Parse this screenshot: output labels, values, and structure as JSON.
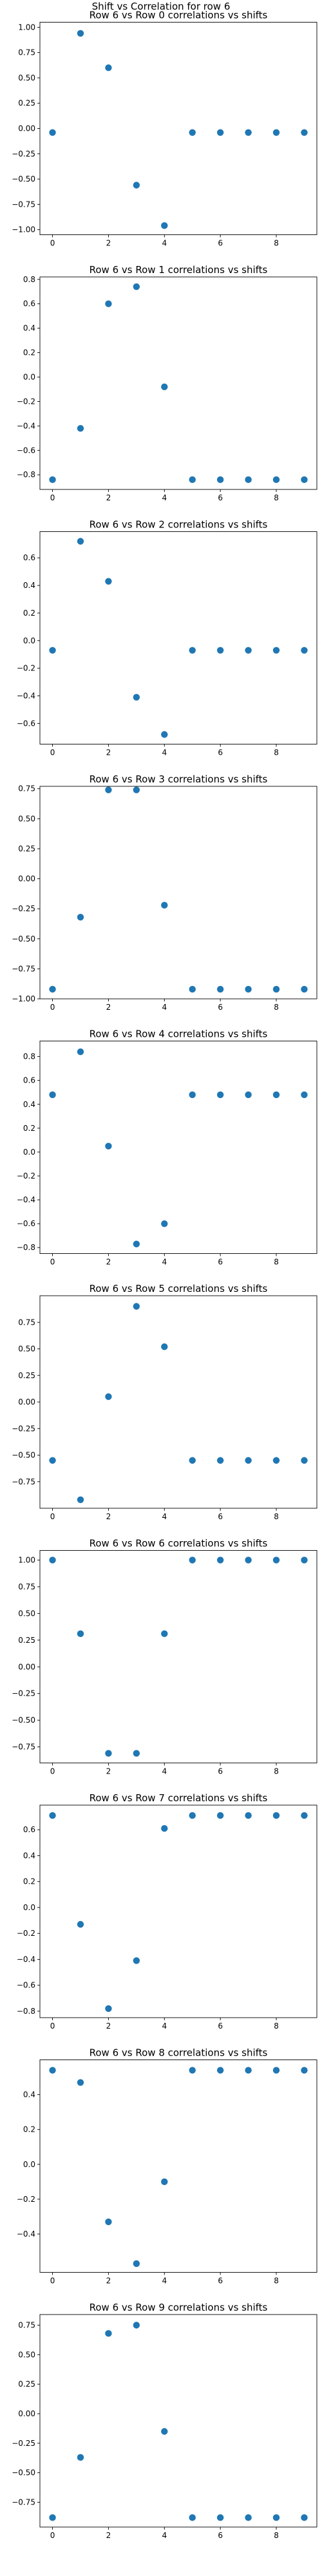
{
  "figure_title": "Shift vs Correlation for row 6",
  "colors": {
    "marker": "#1f77b4",
    "background": "#ffffff",
    "axes": "#000000"
  },
  "chart_data": [
    {
      "type": "scatter",
      "title": "Row 6 vs Row 0 correlations vs shifts",
      "x": [
        0,
        1,
        2,
        3,
        4,
        5,
        6,
        7,
        8,
        9
      ],
      "y": [
        -0.04,
        0.94,
        0.6,
        -0.56,
        -0.96,
        -0.04,
        -0.04,
        -0.04,
        -0.04,
        -0.04
      ],
      "xlim": [
        -0.45,
        9.45
      ],
      "ylim": [
        -1.05,
        1.05
      ],
      "xticks": [
        0,
        2,
        4,
        6,
        8
      ],
      "xtick_labels": [
        "0",
        "2",
        "4",
        "6",
        "8"
      ],
      "yticks": [
        1.0,
        0.75,
        0.5,
        0.25,
        0.0,
        -0.25,
        -0.5,
        -0.75,
        -1.0
      ],
      "ytick_labels": [
        "1.00",
        "0.75",
        "0.50",
        "0.25",
        "0.00",
        "−0.25",
        "−0.50",
        "−0.75",
        "−1.00"
      ],
      "grid": false
    },
    {
      "type": "scatter",
      "title": "Row 6 vs Row 1 correlations vs shifts",
      "x": [
        0,
        1,
        2,
        3,
        4,
        5,
        6,
        7,
        8,
        9
      ],
      "y": [
        -0.84,
        -0.42,
        0.6,
        0.74,
        -0.08,
        -0.84,
        -0.84,
        -0.84,
        -0.84,
        -0.84
      ],
      "xlim": [
        -0.45,
        9.45
      ],
      "ylim": [
        -0.92,
        0.82
      ],
      "xticks": [
        0,
        2,
        4,
        6,
        8
      ],
      "xtick_labels": [
        "0",
        "2",
        "4",
        "6",
        "8"
      ],
      "yticks": [
        0.8,
        0.6,
        0.4,
        0.2,
        0.0,
        -0.2,
        -0.4,
        -0.6,
        -0.8
      ],
      "ytick_labels": [
        "0.8",
        "0.6",
        "0.4",
        "0.2",
        "0.0",
        "−0.2",
        "−0.4",
        "−0.6",
        "−0.8"
      ],
      "grid": false
    },
    {
      "type": "scatter",
      "title": "Row 6 vs Row 2 correlations vs shifts",
      "x": [
        0,
        1,
        2,
        3,
        4,
        5,
        6,
        7,
        8,
        9
      ],
      "y": [
        -0.07,
        0.72,
        0.43,
        -0.41,
        -0.68,
        -0.07,
        -0.07,
        -0.07,
        -0.07,
        -0.07
      ],
      "xlim": [
        -0.45,
        9.45
      ],
      "ylim": [
        -0.75,
        0.79
      ],
      "xticks": [
        0,
        2,
        4,
        6,
        8
      ],
      "xtick_labels": [
        "0",
        "2",
        "4",
        "6",
        "8"
      ],
      "yticks": [
        0.6,
        0.4,
        0.2,
        0.0,
        -0.2,
        -0.4,
        -0.6
      ],
      "ytick_labels": [
        "0.6",
        "0.4",
        "0.2",
        "0.0",
        "−0.2",
        "−0.4",
        "−0.6"
      ],
      "grid": false
    },
    {
      "type": "scatter",
      "title": "Row 6 vs Row 3 correlations vs shifts",
      "x": [
        0,
        1,
        2,
        3,
        4,
        5,
        6,
        7,
        8,
        9
      ],
      "y": [
        -0.92,
        -0.32,
        0.74,
        0.74,
        -0.22,
        -0.92,
        -0.92,
        -0.92,
        -0.92,
        -0.92
      ],
      "xlim": [
        -0.45,
        9.45
      ],
      "ylim": [
        -1.0,
        0.77
      ],
      "xticks": [
        0,
        2,
        4,
        6,
        8
      ],
      "xtick_labels": [
        "0",
        "2",
        "4",
        "6",
        "8"
      ],
      "yticks": [
        0.75,
        0.5,
        0.25,
        0.0,
        -0.25,
        -0.5,
        -0.75,
        -1.0
      ],
      "ytick_labels": [
        "0.75",
        "0.50",
        "0.25",
        "0.00",
        "−0.25",
        "−0.50",
        "−0.75",
        "−1.00"
      ],
      "grid": false
    },
    {
      "type": "scatter",
      "title": "Row 6 vs Row 4 correlations vs shifts",
      "x": [
        0,
        1,
        2,
        3,
        4,
        5,
        6,
        7,
        8,
        9
      ],
      "y": [
        0.48,
        0.84,
        0.05,
        -0.77,
        -0.6,
        0.48,
        0.48,
        0.48,
        0.48,
        0.48
      ],
      "xlim": [
        -0.45,
        9.45
      ],
      "ylim": [
        -0.85,
        0.93
      ],
      "xticks": [
        0,
        2,
        4,
        6,
        8
      ],
      "xtick_labels": [
        "0",
        "2",
        "4",
        "6",
        "8"
      ],
      "yticks": [
        0.8,
        0.6,
        0.4,
        0.2,
        0.0,
        -0.2,
        -0.4,
        -0.6,
        -0.8
      ],
      "ytick_labels": [
        "0.8",
        "0.6",
        "0.4",
        "0.2",
        "0.0",
        "−0.2",
        "−0.4",
        "−0.6",
        "−0.8"
      ],
      "grid": false
    },
    {
      "type": "scatter",
      "title": "Row 6 vs Row 5 correlations vs shifts",
      "x": [
        0,
        1,
        2,
        3,
        4,
        5,
        6,
        7,
        8,
        9
      ],
      "y": [
        -0.55,
        -0.92,
        0.05,
        0.9,
        0.52,
        -0.55,
        -0.55,
        -0.55,
        -0.55,
        -0.55
      ],
      "xlim": [
        -0.45,
        9.45
      ],
      "ylim": [
        -1.0,
        1.0
      ],
      "xticks": [
        0,
        2,
        4,
        6,
        8
      ],
      "xtick_labels": [
        "0",
        "2",
        "4",
        "6",
        "8"
      ],
      "yticks": [
        0.75,
        0.5,
        0.25,
        0.0,
        -0.25,
        -0.5,
        -0.75
      ],
      "ytick_labels": [
        "0.75",
        "0.50",
        "0.25",
        "0.00",
        "−0.25",
        "−0.50",
        "−0.75"
      ],
      "grid": false
    },
    {
      "type": "scatter",
      "title": "Row 6 vs Row 6 correlations vs shifts",
      "x": [
        0,
        1,
        2,
        3,
        4,
        5,
        6,
        7,
        8,
        9
      ],
      "y": [
        1.0,
        0.31,
        -0.81,
        -0.81,
        0.31,
        1.0,
        1.0,
        1.0,
        1.0,
        1.0
      ],
      "xlim": [
        -0.45,
        9.45
      ],
      "ylim": [
        -0.9,
        1.09
      ],
      "xticks": [
        0,
        2,
        4,
        6,
        8
      ],
      "xtick_labels": [
        "0",
        "2",
        "4",
        "6",
        "8"
      ],
      "yticks": [
        1.0,
        0.75,
        0.5,
        0.25,
        0.0,
        -0.25,
        -0.5,
        -0.75
      ],
      "ytick_labels": [
        "1.00",
        "0.75",
        "0.50",
        "0.25",
        "0.00",
        "−0.25",
        "−0.50",
        "−0.75"
      ],
      "grid": false
    },
    {
      "type": "scatter",
      "title": "Row 6 vs Row 7 correlations vs shifts",
      "x": [
        0,
        1,
        2,
        3,
        4,
        5,
        6,
        7,
        8,
        9
      ],
      "y": [
        0.71,
        -0.13,
        -0.78,
        -0.41,
        0.61,
        0.71,
        0.71,
        0.71,
        0.71,
        0.71
      ],
      "xlim": [
        -0.45,
        9.45
      ],
      "ylim": [
        -0.85,
        0.79
      ],
      "xticks": [
        0,
        2,
        4,
        6,
        8
      ],
      "xtick_labels": [
        "0",
        "2",
        "4",
        "6",
        "8"
      ],
      "yticks": [
        0.6,
        0.4,
        0.2,
        0.0,
        -0.2,
        -0.4,
        -0.6,
        -0.8
      ],
      "ytick_labels": [
        "0.6",
        "0.4",
        "0.2",
        "0.0",
        "−0.2",
        "−0.4",
        "−0.6",
        "−0.8"
      ],
      "grid": false
    },
    {
      "type": "scatter",
      "title": "Row 6 vs Row 8 correlations vs shifts",
      "x": [
        0,
        1,
        2,
        3,
        4,
        5,
        6,
        7,
        8,
        9
      ],
      "y": [
        0.54,
        0.47,
        -0.33,
        -0.57,
        -0.1,
        0.54,
        0.54,
        0.54,
        0.54,
        0.54
      ],
      "xlim": [
        -0.45,
        9.45
      ],
      "ylim": [
        -0.62,
        0.6
      ],
      "xticks": [
        0,
        2,
        4,
        6,
        8
      ],
      "xtick_labels": [
        "0",
        "2",
        "4",
        "6",
        "8"
      ],
      "yticks": [
        0.4,
        0.2,
        0.0,
        -0.2,
        -0.4
      ],
      "ytick_labels": [
        "0.4",
        "0.2",
        "0.0",
        "−0.2",
        "−0.4"
      ],
      "grid": false
    },
    {
      "type": "scatter",
      "title": "Row 6 vs Row 9 correlations vs shifts",
      "x": [
        0,
        1,
        2,
        3,
        4,
        5,
        6,
        7,
        8,
        9
      ],
      "y": [
        -0.88,
        -0.37,
        0.68,
        0.75,
        -0.15,
        -0.88,
        -0.88,
        -0.88,
        -0.88,
        -0.88
      ],
      "xlim": [
        -0.45,
        9.45
      ],
      "ylim": [
        -0.96,
        0.84
      ],
      "xticks": [
        0,
        2,
        4,
        6,
        8
      ],
      "xtick_labels": [
        "0",
        "2",
        "4",
        "6",
        "8"
      ],
      "yticks": [
        0.75,
        0.5,
        0.25,
        0.0,
        -0.25,
        -0.5,
        -0.75
      ],
      "ytick_labels": [
        "0.75",
        "0.50",
        "0.25",
        "0.00",
        "−0.25",
        "−0.50",
        "−0.75"
      ],
      "grid": false
    }
  ]
}
